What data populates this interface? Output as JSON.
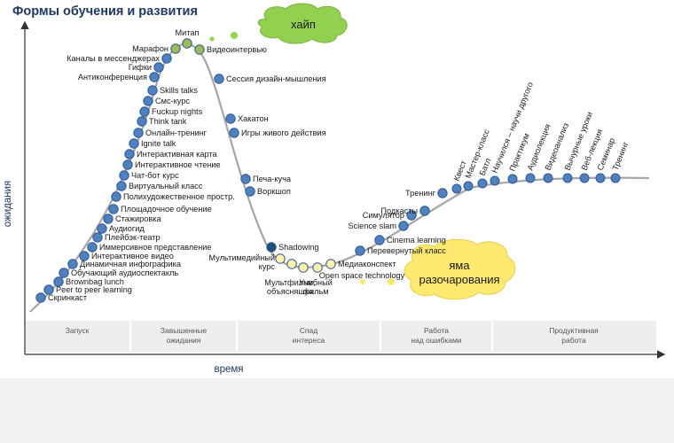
{
  "title": "Формы обучения и развития",
  "axes": {
    "y_label": "ожидания",
    "x_label": "время"
  },
  "clouds": {
    "hype": "хайп",
    "pit_line1": "яма",
    "pit_line2": "разочарования"
  },
  "stages": [
    {
      "line1": "Запуск",
      "line2": ""
    },
    {
      "line1": "Завышенные",
      "line2": "ожидания"
    },
    {
      "line1": "Спад",
      "line2": "интереса"
    },
    {
      "line1": "Работа",
      "line2": "над ошибками"
    },
    {
      "line1": "Продуктивная",
      "line2": "работа"
    }
  ],
  "colors": {
    "blue_dot": "#4f81bd",
    "green_dot": "#9bbb59",
    "yellow_dot": "#fff2a8",
    "dark_dot": "#1f4e79",
    "curve": "#a6a6a6"
  },
  "points": [
    {
      "label": "Скринкаст",
      "color": "blue"
    },
    {
      "label": "Peer to peer learning",
      "color": "blue"
    },
    {
      "label": "Brownbag lunch",
      "color": "blue"
    },
    {
      "label": "Обучающий аудиоспектакль",
      "color": "blue"
    },
    {
      "label": "Динамичная инфографика",
      "color": "blue"
    },
    {
      "label": "Интерактивное видео",
      "color": "blue"
    },
    {
      "label": "Иммерсивное представление",
      "color": "blue"
    },
    {
      "label": "Плейбэк-театр",
      "color": "blue"
    },
    {
      "label": "Аудиогид",
      "color": "blue"
    },
    {
      "label": "Стажировка",
      "color": "blue"
    },
    {
      "label": "Площадочное обучение",
      "color": "blue"
    },
    {
      "label": "Полихудожественное простр.",
      "color": "blue"
    },
    {
      "label": "Виртуальный класс",
      "color": "blue"
    },
    {
      "label": "Чат-бот курс",
      "color": "blue"
    },
    {
      "label": "Интерактивное чтение",
      "color": "blue"
    },
    {
      "label": "Интерактивная карта",
      "color": "blue"
    },
    {
      "label": "Ignite talk",
      "color": "blue"
    },
    {
      "label": "Онлайн-тренинг",
      "color": "blue"
    },
    {
      "label": "Think tank",
      "color": "blue"
    },
    {
      "label": "Fuckup nights",
      "color": "blue"
    },
    {
      "label": "Смс-курс",
      "color": "blue"
    },
    {
      "label": "Skills talks",
      "color": "blue"
    },
    {
      "label": "Антиконференция",
      "color": "blue"
    },
    {
      "label": "Гифки",
      "color": "blue"
    },
    {
      "label": "Каналы в мессенджерах",
      "color": "blue"
    },
    {
      "label": "Марафон",
      "color": "green"
    },
    {
      "label": "Митап",
      "color": "green"
    },
    {
      "label": "Видеоинтервью",
      "color": "green"
    },
    {
      "label": "Сессия дизайн-мышления",
      "color": "blue"
    },
    {
      "label": "Хакатон",
      "color": "blue"
    },
    {
      "label": "Игры живого действия",
      "color": "blue"
    },
    {
      "label": "Печа-куча",
      "color": "blue"
    },
    {
      "label": "Воркшоп",
      "color": "blue"
    },
    {
      "label": "Shadowing",
      "color": "dark"
    },
    {
      "label": "Мультимедийный курс",
      "color": "yellow"
    },
    {
      "label": "Мультфильм, объясняшка",
      "color": "yellow"
    },
    {
      "label": "Учебный фильм",
      "color": "yellow"
    },
    {
      "label": "Open space technology",
      "color": "yellow"
    },
    {
      "label": "Медиаконспект",
      "color": "yellow"
    },
    {
      "label": "Перевернутый класс",
      "color": "blue"
    },
    {
      "label": "Cinema learning",
      "color": "blue"
    },
    {
      "label": "Science slam",
      "color": "blue"
    },
    {
      "label": "Симулятор",
      "color": "blue"
    },
    {
      "label": "Подкасты",
      "color": "blue"
    },
    {
      "label": "Тренинг",
      "color": "blue"
    },
    {
      "label": "Квест",
      "color": "blue"
    },
    {
      "label": "Мастер-класс",
      "color": "blue"
    },
    {
      "label": "Батл",
      "color": "blue"
    },
    {
      "label": "Научился – научи другого",
      "color": "blue"
    },
    {
      "label": "Практикум",
      "color": "blue"
    },
    {
      "label": "Аудиолекция",
      "color": "blue"
    },
    {
      "label": "Видеоанализ",
      "color": "blue"
    },
    {
      "label": "Вычурные уроки",
      "color": "blue"
    },
    {
      "label": "Веб-лекция",
      "color": "blue"
    },
    {
      "label": "Семинар",
      "color": "blue"
    },
    {
      "label": "Тренинг",
      "color": "blue"
    }
  ]
}
